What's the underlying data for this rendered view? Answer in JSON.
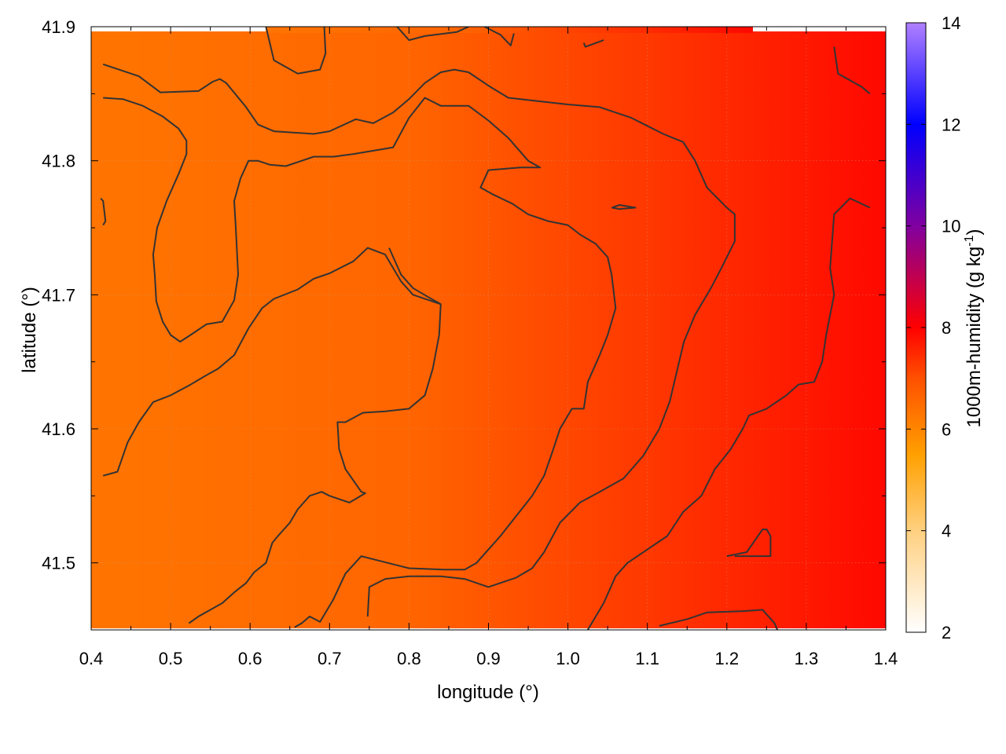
{
  "chart_data": {
    "type": "heatmap",
    "xlabel": "longitude (°)",
    "ylabel": "latitude (°)",
    "colorbar_label": "1000m-humidity (g kg",
    "colorbar_label_sup": "-1",
    "colorbar_label_end": ")",
    "xlim": [
      0.4,
      1.4
    ],
    "ylim": [
      41.45,
      41.9
    ],
    "x_ticks": [
      0.4,
      0.5,
      0.6,
      0.7,
      0.8,
      0.9,
      1.0,
      1.1,
      1.2,
      1.3,
      1.4
    ],
    "x_tick_labels": [
      "0.4",
      "0.5",
      "0.6",
      "0.7",
      "0.8",
      "0.9",
      "1.0",
      "1.1",
      "1.2",
      "1.3",
      "1.4"
    ],
    "y_ticks": [
      41.5,
      41.6,
      41.7,
      41.8,
      41.9
    ],
    "y_tick_labels": [
      "41.5",
      "41.6",
      "41.7",
      "41.8",
      "41.9"
    ],
    "colorbar_range": [
      2,
      14
    ],
    "colorbar_ticks": [
      2,
      4,
      6,
      8,
      10,
      12,
      14
    ],
    "colorbar_tick_labels": [
      "2",
      "4",
      "6",
      "8",
      "10",
      "12",
      "14"
    ],
    "colormap": [
      {
        "value": 2,
        "color": "#ffffff"
      },
      {
        "value": 4,
        "color": "#ffd080"
      },
      {
        "value": 5.5,
        "color": "#ffa000"
      },
      {
        "value": 7,
        "color": "#ff5000"
      },
      {
        "value": 8,
        "color": "#ff0000"
      },
      {
        "value": 10,
        "color": "#8000a0"
      },
      {
        "value": 12,
        "color": "#0000ff"
      },
      {
        "value": 14,
        "color": "#b080ff"
      }
    ],
    "field_gradient": [
      {
        "lon": 0.4,
        "humidity": 6.3
      },
      {
        "lon": 0.8,
        "humidity": 6.6
      },
      {
        "lon": 1.1,
        "humidity": 7.3
      },
      {
        "lon": 1.4,
        "humidity": 7.9
      }
    ],
    "grid": true,
    "contour_color": "#333333",
    "contours": [
      [
        [
          0.415,
          41.872
        ],
        [
          0.46,
          41.863
        ],
        [
          0.487,
          41.851
        ],
        [
          0.535,
          41.852
        ],
        [
          0.553,
          41.859
        ],
        [
          0.562,
          41.861
        ],
        [
          0.57,
          41.858
        ],
        [
          0.595,
          41.84
        ],
        [
          0.61,
          41.827
        ],
        [
          0.63,
          41.822
        ],
        [
          0.68,
          41.82
        ],
        [
          0.7,
          41.822
        ],
        [
          0.733,
          41.831
        ],
        [
          0.755,
          41.828
        ],
        [
          0.78,
          41.836
        ],
        [
          0.8,
          41.846
        ],
        [
          0.82,
          41.858
        ],
        [
          0.84,
          41.866
        ],
        [
          0.857,
          41.868
        ],
        [
          0.875,
          41.866
        ],
        [
          0.9,
          41.856
        ],
        [
          0.925,
          41.847
        ],
        [
          0.97,
          41.844
        ],
        [
          1.0,
          41.842
        ],
        [
          1.04,
          41.84
        ],
        [
          1.08,
          41.832
        ],
        [
          1.1,
          41.826
        ],
        [
          1.12,
          41.82
        ],
        [
          1.145,
          41.814
        ],
        [
          1.16,
          41.8
        ],
        [
          1.175,
          41.78
        ],
        [
          1.2,
          41.765
        ],
        [
          1.21,
          41.76
        ],
        [
          1.21,
          41.74
        ],
        [
          1.195,
          41.722
        ],
        [
          1.18,
          41.705
        ],
        [
          1.16,
          41.685
        ],
        [
          1.146,
          41.665
        ],
        [
          1.14,
          41.65
        ],
        [
          1.128,
          41.62
        ],
        [
          1.115,
          41.6
        ],
        [
          1.095,
          41.58
        ],
        [
          1.07,
          41.563
        ],
        [
          1.04,
          41.553
        ],
        [
          1.015,
          41.545
        ],
        [
          0.99,
          41.53
        ],
        [
          0.97,
          41.508
        ],
        [
          0.955,
          41.496
        ],
        [
          0.935,
          41.489
        ],
        [
          0.9,
          41.482
        ],
        [
          0.87,
          41.488
        ],
        [
          0.84,
          41.49
        ],
        [
          0.8,
          41.49
        ],
        [
          0.77,
          41.488
        ],
        [
          0.75,
          41.482
        ],
        [
          0.748,
          41.46
        ]
      ],
      [
        [
          0.415,
          41.847
        ],
        [
          0.44,
          41.846
        ],
        [
          0.465,
          41.841
        ],
        [
          0.49,
          41.833
        ],
        [
          0.51,
          41.824
        ],
        [
          0.52,
          41.815
        ],
        [
          0.52,
          41.805
        ],
        [
          0.51,
          41.79
        ],
        [
          0.495,
          41.77
        ],
        [
          0.483,
          41.75
        ],
        [
          0.478,
          41.73
        ],
        [
          0.48,
          41.715
        ],
        [
          0.482,
          41.695
        ],
        [
          0.49,
          41.68
        ],
        [
          0.5,
          41.67
        ],
        [
          0.512,
          41.665
        ],
        [
          0.525,
          41.67
        ],
        [
          0.545,
          41.678
        ],
        [
          0.565,
          41.68
        ],
        [
          0.58,
          41.696
        ],
        [
          0.585,
          41.715
        ],
        [
          0.582,
          41.75
        ],
        [
          0.58,
          41.77
        ],
        [
          0.588,
          41.787
        ],
        [
          0.598,
          41.8
        ],
        [
          0.61,
          41.8
        ],
        [
          0.625,
          41.797
        ],
        [
          0.645,
          41.796
        ],
        [
          0.68,
          41.803
        ],
        [
          0.705,
          41.803
        ],
        [
          0.73,
          41.805
        ],
        [
          0.78,
          41.81
        ],
        [
          0.8,
          41.832
        ],
        [
          0.82,
          41.847
        ],
        [
          0.84,
          41.841
        ],
        [
          0.875,
          41.841
        ],
        [
          0.9,
          41.83
        ],
        [
          0.925,
          41.817
        ],
        [
          0.95,
          41.8
        ],
        [
          0.965,
          41.795
        ],
        [
          0.94,
          41.795
        ],
        [
          0.9,
          41.793
        ],
        [
          0.89,
          41.78
        ],
        [
          0.905,
          41.775
        ],
        [
          0.93,
          41.768
        ],
        [
          0.95,
          41.76
        ],
        [
          0.975,
          41.755
        ],
        [
          1.0,
          41.752
        ],
        [
          1.015,
          41.745
        ],
        [
          1.035,
          41.738
        ],
        [
          1.05,
          41.728
        ],
        [
          1.055,
          41.715
        ],
        [
          1.06,
          41.69
        ],
        [
          1.05,
          41.67
        ],
        [
          1.04,
          41.655
        ],
        [
          1.025,
          41.635
        ],
        [
          1.02,
          41.615
        ],
        [
          1.005,
          41.615
        ],
        [
          0.99,
          41.6
        ],
        [
          0.98,
          41.582
        ],
        [
          0.97,
          41.565
        ],
        [
          0.955,
          41.55
        ],
        [
          0.935,
          41.535
        ],
        [
          0.915,
          41.52
        ],
        [
          0.9,
          41.51
        ],
        [
          0.885,
          41.5
        ],
        [
          0.87,
          41.495
        ],
        [
          0.845,
          41.495
        ],
        [
          0.8,
          41.496
        ],
        [
          0.76,
          41.502
        ],
        [
          0.74,
          41.505
        ],
        [
          0.72,
          41.492
        ],
        [
          0.705,
          41.473
        ],
        [
          0.688,
          41.456
        ],
        [
          0.675,
          41.46
        ],
        [
          0.665,
          41.455
        ],
        [
          0.656,
          41.452
        ]
      ],
      [
        [
          0.415,
          41.565
        ],
        [
          0.433,
          41.568
        ],
        [
          0.446,
          41.59
        ],
        [
          0.46,
          41.605
        ],
        [
          0.478,
          41.62
        ],
        [
          0.5,
          41.625
        ],
        [
          0.525,
          41.633
        ],
        [
          0.545,
          41.64
        ],
        [
          0.56,
          41.645
        ],
        [
          0.58,
          41.655
        ],
        [
          0.598,
          41.675
        ],
        [
          0.615,
          41.69
        ],
        [
          0.63,
          41.697
        ],
        [
          0.66,
          41.704
        ],
        [
          0.68,
          41.712
        ],
        [
          0.7,
          41.716
        ],
        [
          0.73,
          41.725
        ],
        [
          0.748,
          41.735
        ],
        [
          0.77,
          41.73
        ],
        [
          0.79,
          41.71
        ],
        [
          0.805,
          41.7
        ],
        [
          0.84,
          41.693
        ],
        [
          0.838,
          41.67
        ],
        [
          0.83,
          41.645
        ],
        [
          0.82,
          41.625
        ],
        [
          0.8,
          41.615
        ],
        [
          0.77,
          41.613
        ],
        [
          0.742,
          41.612
        ],
        [
          0.72,
          41.605
        ],
        [
          0.71,
          41.605
        ],
        [
          0.712,
          41.585
        ],
        [
          0.72,
          41.57
        ],
        [
          0.74,
          41.553
        ],
        [
          0.745,
          41.552
        ],
        [
          0.725,
          41.545
        ],
        [
          0.7,
          41.55
        ],
        [
          0.69,
          41.553
        ],
        [
          0.675,
          41.55
        ],
        [
          0.66,
          41.54
        ],
        [
          0.65,
          41.53
        ],
        [
          0.635,
          41.52
        ],
        [
          0.628,
          41.515
        ],
        [
          0.62,
          41.5
        ],
        [
          0.605,
          41.493
        ],
        [
          0.595,
          41.485
        ],
        [
          0.58,
          41.478
        ],
        [
          0.565,
          41.47
        ],
        [
          0.55,
          41.465
        ],
        [
          0.535,
          41.46
        ],
        [
          0.523,
          41.455
        ]
      ],
      [
        [
          0.775,
          41.735
        ],
        [
          0.79,
          41.715
        ],
        [
          0.805,
          41.705
        ],
        [
          0.825,
          41.698
        ],
        [
          0.84,
          41.693
        ]
      ],
      [
        [
          1.335,
          41.885
        ],
        [
          1.34,
          41.865
        ],
        [
          1.37,
          41.855
        ],
        [
          1.38,
          41.85
        ]
      ],
      [
        [
          1.38,
          41.765
        ],
        [
          1.355,
          41.772
        ],
        [
          1.335,
          41.76
        ],
        [
          1.33,
          41.72
        ],
        [
          1.335,
          41.7
        ],
        [
          1.33,
          41.685
        ],
        [
          1.325,
          41.67
        ],
        [
          1.32,
          41.65
        ],
        [
          1.31,
          41.635
        ],
        [
          1.29,
          41.633
        ],
        [
          1.275,
          41.625
        ],
        [
          1.25,
          41.615
        ],
        [
          1.228,
          41.61
        ],
        [
          1.22,
          41.6
        ],
        [
          1.205,
          41.585
        ],
        [
          1.185,
          41.57
        ],
        [
          1.168,
          41.55
        ],
        [
          1.145,
          41.538
        ],
        [
          1.125,
          41.52
        ],
        [
          1.1,
          41.51
        ],
        [
          1.075,
          41.5
        ],
        [
          1.06,
          41.49
        ],
        [
          1.045,
          41.47
        ],
        [
          1.03,
          41.455
        ],
        [
          1.02,
          41.445
        ]
      ],
      [
        [
          1.2,
          41.505
        ],
        [
          1.225,
          41.508
        ],
        [
          1.245,
          41.525
        ],
        [
          1.25,
          41.525
        ],
        [
          1.255,
          41.52
        ],
        [
          1.255,
          41.505
        ],
        [
          1.21,
          41.505
        ]
      ],
      [
        [
          1.115,
          41.453
        ],
        [
          1.15,
          41.458
        ],
        [
          1.175,
          41.463
        ],
        [
          1.22,
          41.464
        ],
        [
          1.245,
          41.465
        ],
        [
          1.26,
          41.455
        ],
        [
          1.265,
          41.448
        ]
      ],
      [
        [
          1.318,
          41.45
        ],
        [
          1.32,
          41.448
        ]
      ],
      [
        [
          0.412,
          41.772
        ],
        [
          0.415,
          41.77
        ],
        [
          0.418,
          41.755
        ],
        [
          0.415,
          41.752
        ]
      ],
      [
        [
          0.62,
          41.9
        ],
        [
          0.63,
          41.875
        ],
        [
          0.66,
          41.865
        ],
        [
          0.688,
          41.868
        ],
        [
          0.695,
          41.88
        ],
        [
          0.693,
          41.905
        ]
      ],
      [
        [
          0.785,
          41.9
        ],
        [
          0.8,
          41.89
        ],
        [
          0.82,
          41.893
        ],
        [
          0.86,
          41.896
        ],
        [
          0.875,
          41.9
        ]
      ],
      [
        [
          0.895,
          41.9
        ],
        [
          0.915,
          41.894
        ],
        [
          0.928,
          41.886
        ],
        [
          0.932,
          41.895
        ]
      ],
      [
        [
          1.02,
          41.888
        ],
        [
          1.022,
          41.885
        ],
        [
          1.045,
          41.89
        ]
      ],
      [
        [
          1.055,
          41.765
        ],
        [
          1.065,
          41.767
        ],
        [
          1.085,
          41.765
        ],
        [
          1.065,
          41.764
        ],
        [
          1.055,
          41.765
        ]
      ]
    ]
  }
}
